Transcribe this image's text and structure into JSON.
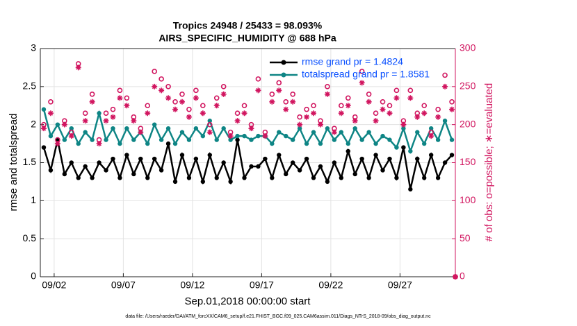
{
  "chart_data": {
    "type": "line",
    "title": [
      "Tropics 24948 / 25433 = 98.093%",
      "AIRS_SPECIFIC_HUMIDITY @ 688 hPa"
    ],
    "xlabel": "Sep.01,2018 00:00:00 start",
    "ylabel": "rmse and totalspread",
    "y2label": "# of obs: o=possible; ∗=evaluated",
    "footnote": "data file: /Users/raeder/DAI/ATM_forcXX/CAM6_setup/f.e21.FHIST_BGC.f09_025.CAM6assim.011/Diags_NTrS_2018-09/obs_diag_output.nc",
    "x": [
      1.25,
      1.75,
      2.25,
      2.75,
      3.25,
      3.75,
      4.25,
      4.75,
      5.25,
      5.75,
      6.25,
      6.75,
      7.25,
      7.75,
      8.25,
      8.75,
      9.25,
      9.75,
      10.25,
      10.75,
      11.25,
      11.75,
      12.25,
      12.75,
      13.25,
      13.75,
      14.25,
      14.75,
      15.25,
      15.75,
      16.25,
      16.75,
      17.25,
      17.75,
      18.25,
      18.75,
      19.25,
      19.75,
      20.25,
      20.75,
      21.25,
      21.75,
      22.25,
      22.75,
      23.25,
      23.75,
      24.25,
      24.75,
      25.25,
      25.75,
      26.25,
      26.75,
      27.25,
      27.75,
      28.25,
      28.75,
      29.25,
      29.75,
      30.25,
      30.75,
      31
    ],
    "xlim": [
      1,
      31
    ],
    "xticks": [
      {
        "value": 2,
        "label": "09/02"
      },
      {
        "value": 7,
        "label": "09/07"
      },
      {
        "value": 12,
        "label": "09/12"
      },
      {
        "value": 17,
        "label": "09/17"
      },
      {
        "value": 22,
        "label": "09/22"
      },
      {
        "value": 27,
        "label": "09/27"
      }
    ],
    "ylim": [
      0,
      3
    ],
    "yticks": [
      0,
      0.5,
      1,
      1.5,
      2,
      2.5,
      3
    ],
    "y2lim": [
      0,
      300
    ],
    "y2ticks": [
      0,
      50,
      100,
      150,
      200,
      250,
      300
    ],
    "grid": true,
    "legend": "upper right",
    "series": [
      {
        "name": "rmse grand pr = 1.4824",
        "color": "#000000",
        "marker": "dot",
        "values": [
          1.7,
          1.4,
          1.8,
          1.35,
          1.5,
          1.3,
          1.45,
          1.3,
          1.5,
          1.4,
          1.55,
          1.3,
          1.6,
          1.35,
          1.55,
          1.3,
          1.55,
          1.4,
          1.75,
          1.25,
          1.6,
          1.3,
          1.55,
          1.25,
          1.6,
          1.3,
          1.5,
          1.25,
          1.8,
          1.3,
          1.45,
          1.45,
          1.55,
          1.3,
          1.6,
          1.35,
          1.5,
          1.4,
          1.55,
          1.3,
          1.45,
          1.25,
          1.5,
          1.3,
          1.65,
          1.35,
          1.55,
          1.3,
          1.6,
          1.4,
          1.55,
          1.3,
          1.7,
          1.15,
          1.55,
          1.3,
          1.6,
          1.3,
          1.5,
          1.6,
          null
        ]
      },
      {
        "name": "totalspread grand pr = 1.8581",
        "color": "#0e8585",
        "marker": "dot",
        "values": [
          2.2,
          1.85,
          2.0,
          1.8,
          1.95,
          1.75,
          1.9,
          1.8,
          2.15,
          1.8,
          1.95,
          1.75,
          1.95,
          1.8,
          1.9,
          1.75,
          2.0,
          1.8,
          1.95,
          1.75,
          1.9,
          1.8,
          1.95,
          1.85,
          2.05,
          1.8,
          1.95,
          1.8,
          1.85,
          1.85,
          1.8,
          1.85,
          1.85,
          1.75,
          1.9,
          1.85,
          1.8,
          1.95,
          1.75,
          1.9,
          1.75,
          1.95,
          1.8,
          1.9,
          1.75,
          1.95,
          1.8,
          1.9,
          1.75,
          1.85,
          1.8,
          1.7,
          1.95,
          1.65,
          1.9,
          1.75,
          1.95,
          1.8,
          2.05,
          1.8,
          null
        ]
      },
      {
        "color": "#d1155f",
        "marker": "circle",
        "axis": "y2",
        "values": [
          200,
          230,
          180,
          205,
          190,
          280,
          215,
          240,
          180,
          215,
          220,
          245,
          235,
          210,
          195,
          225,
          270,
          260,
          250,
          230,
          240,
          220,
          245,
          225,
          200,
          235,
          250,
          190,
          215,
          225,
          200,
          260,
          190,
          240,
          255,
          230,
          240,
          210,
          220,
          225,
          205,
          250,
          195,
          225,
          235,
          210,
          270,
          240,
          215,
          230,
          225,
          245,
          205,
          245,
          215,
          225,
          190,
          220,
          265,
          230,
          0
        ]
      },
      {
        "color": "#d1155f",
        "marker": "asterisk",
        "axis": "y2",
        "values": [
          195,
          215,
          175,
          200,
          185,
          275,
          205,
          230,
          175,
          205,
          210,
          235,
          225,
          205,
          190,
          215,
          250,
          245,
          235,
          220,
          230,
          210,
          235,
          215,
          190,
          225,
          240,
          185,
          205,
          215,
          195,
          245,
          185,
          230,
          245,
          220,
          230,
          200,
          210,
          215,
          200,
          240,
          190,
          215,
          225,
          205,
          255,
          230,
          205,
          220,
          215,
          235,
          200,
          235,
          210,
          215,
          185,
          210,
          250,
          220,
          0
        ]
      }
    ]
  }
}
